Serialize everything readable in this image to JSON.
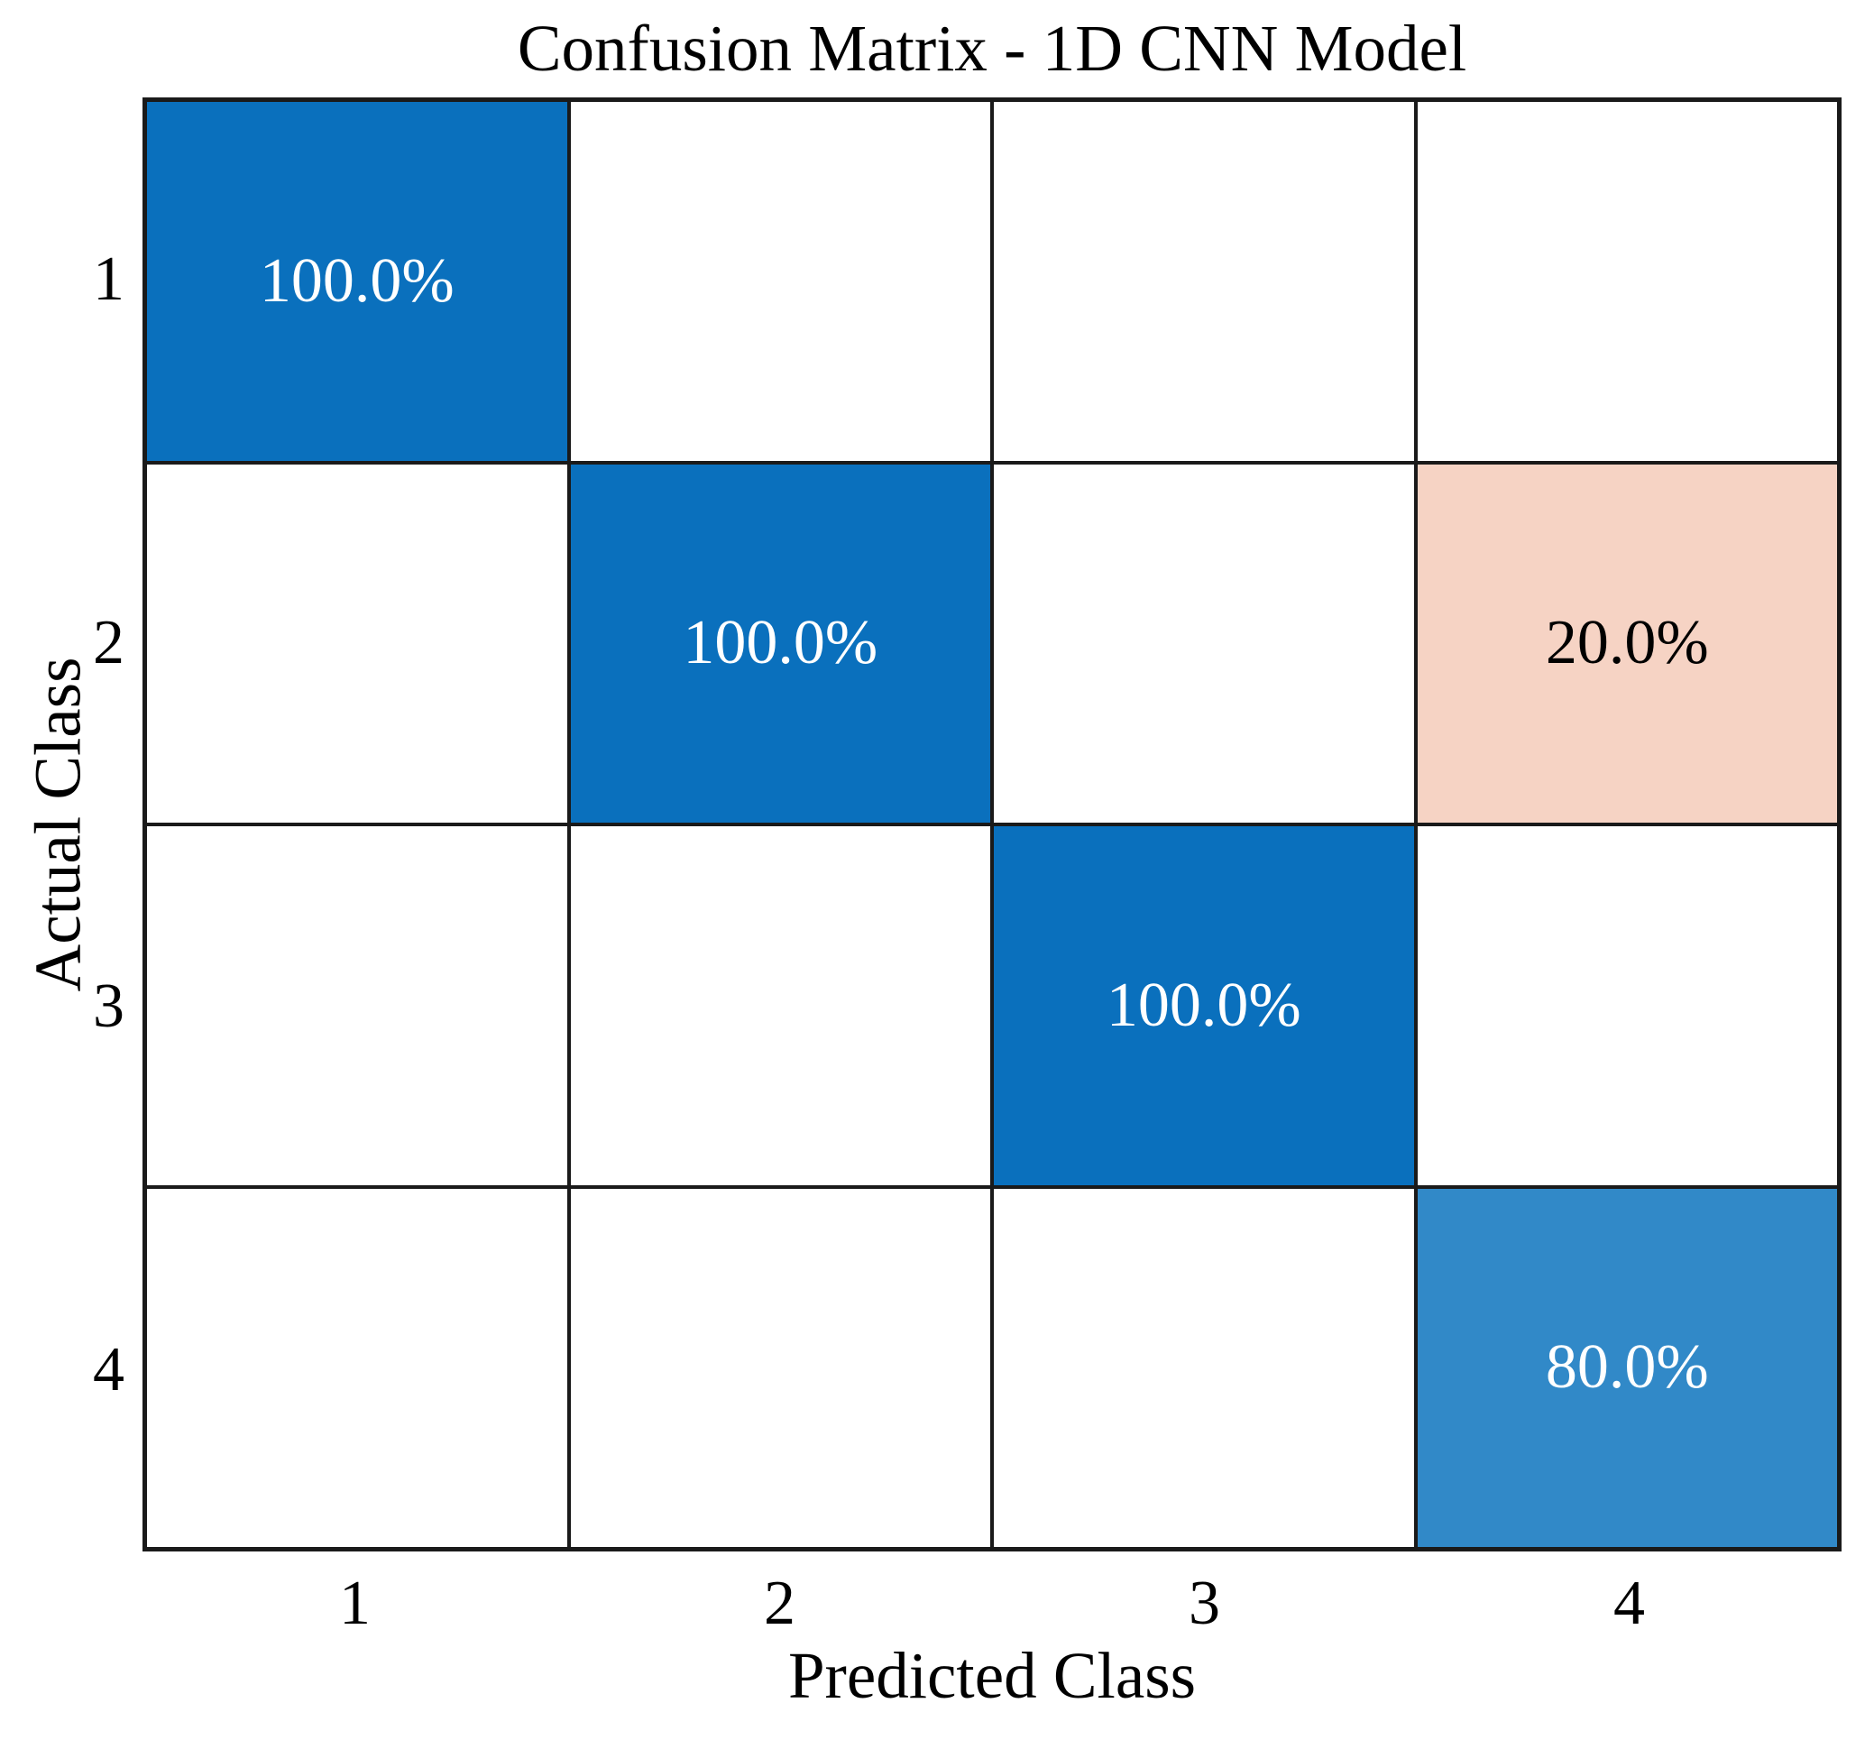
{
  "chart_data": {
    "type": "heatmap",
    "title": "Confusion Matrix - 1D CNN Model",
    "xlabel": "Predicted Class",
    "ylabel": "Actual Class",
    "x_tick_labels": [
      "1",
      "2",
      "3",
      "4"
    ],
    "y_tick_labels": [
      "1",
      "2",
      "3",
      "4"
    ],
    "rows": 4,
    "cols": 4,
    "values_percent": [
      [
        100.0,
        null,
        null,
        null
      ],
      [
        null,
        100.0,
        null,
        20.0
      ],
      [
        null,
        null,
        100.0,
        null
      ],
      [
        null,
        null,
        null,
        80.0
      ]
    ],
    "cell_labels": [
      [
        "100.0%",
        "",
        "",
        ""
      ],
      [
        "",
        "100.0%",
        "",
        "20.0%"
      ],
      [
        "",
        "",
        "100.0%",
        ""
      ],
      [
        "",
        "",
        "",
        "80.0%"
      ]
    ],
    "cell_bg_colors": [
      [
        "#0a70bd",
        "#ffffff",
        "#ffffff",
        "#ffffff"
      ],
      [
        "#ffffff",
        "#0a70bd",
        "#ffffff",
        "#f6d3c4"
      ],
      [
        "#ffffff",
        "#ffffff",
        "#0a70bd",
        "#ffffff"
      ],
      [
        "#ffffff",
        "#ffffff",
        "#ffffff",
        "#3189c8"
      ]
    ],
    "cell_text_colors": [
      [
        "#ffffff",
        "#000000",
        "#000000",
        "#000000"
      ],
      [
        "#000000",
        "#ffffff",
        "#000000",
        "#000000"
      ],
      [
        "#000000",
        "#000000",
        "#ffffff",
        "#000000"
      ],
      [
        "#000000",
        "#000000",
        "#000000",
        "#ffffff"
      ]
    ],
    "grid_line_color": "#1a1a1a",
    "axes_text_color": "#000000",
    "legend_position": "none",
    "grid": "on"
  }
}
